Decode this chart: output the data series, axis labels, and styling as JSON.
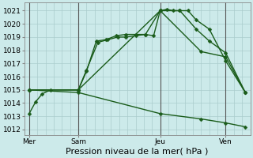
{
  "title": "Pression niveau de la mer( hPa )",
  "background_color": "#cceaea",
  "grid_color": "#aacccc",
  "line_color": "#1a5c1a",
  "marker_color": "#1a5c1a",
  "vline_color": "#555555",
  "xtick_labels": [
    "Mer",
    "Sam",
    "Jeu",
    "Ven"
  ],
  "xtick_positions": [
    0,
    3,
    8,
    12
  ],
  "ytick_vals": [
    1012,
    1013,
    1014,
    1015,
    1016,
    1017,
    1018,
    1019,
    1020,
    1021
  ],
  "ylim": [
    1011.6,
    1021.6
  ],
  "xlim": [
    -0.3,
    13.5
  ],
  "series": [
    {
      "x": [
        0,
        0.4,
        0.8,
        1.3,
        3.0,
        3.5,
        4.1,
        4.7,
        5.3,
        5.9,
        6.5,
        7.1,
        7.6,
        8.0,
        8.4,
        8.8,
        9.2,
        9.7,
        10.2,
        11.0,
        12.0,
        13.2
      ],
      "y": [
        1013.2,
        1014.1,
        1014.7,
        1015.0,
        1015.0,
        1016.4,
        1018.7,
        1018.8,
        1019.1,
        1019.2,
        1019.2,
        1019.2,
        1019.1,
        1021.0,
        1021.1,
        1021.0,
        1021.0,
        1021.0,
        1020.3,
        1019.6,
        1017.2,
        1014.8
      ]
    },
    {
      "x": [
        0,
        3.0,
        3.5,
        4.2,
        4.8,
        5.4,
        5.9,
        6.5,
        7.1,
        8.0,
        9.2,
        10.2,
        11.0,
        12.0,
        13.2
      ],
      "y": [
        1015.0,
        1015.0,
        1016.5,
        1018.6,
        1018.8,
        1019.0,
        1019.0,
        1019.1,
        1019.2,
        1021.0,
        1021.0,
        1019.6,
        1018.7,
        1017.8,
        1014.8
      ]
    },
    {
      "x": [
        0,
        3.0,
        8.0,
        10.5,
        12.0,
        13.2
      ],
      "y": [
        1015.0,
        1015.0,
        1021.0,
        1017.9,
        1017.5,
        1014.8
      ]
    },
    {
      "x": [
        0,
        3.0,
        8.0,
        10.5,
        12.0,
        13.2
      ],
      "y": [
        1015.0,
        1014.8,
        1013.2,
        1012.8,
        1012.5,
        1012.2
      ]
    }
  ],
  "grid_x_step": 0.5,
  "markersize": 2.5,
  "linewidth": 1.0,
  "tick_fontsize": 6.5,
  "xlabel_fontsize": 8
}
